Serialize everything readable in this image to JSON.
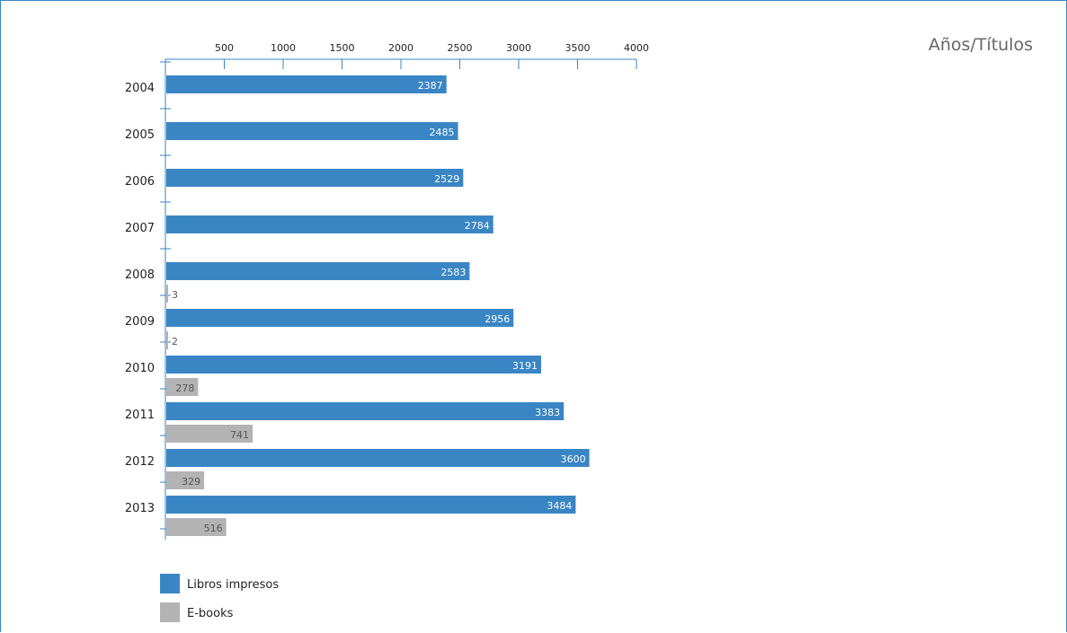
{
  "chart_data": {
    "type": "bar",
    "orientation": "horizontal",
    "title": "Años/Títulos",
    "categories": [
      "2004",
      "2005",
      "2006",
      "2007",
      "2008",
      "2009",
      "2010",
      "2011",
      "2012",
      "2013"
    ],
    "series": [
      {
        "name": "Libros impresos",
        "color": "#3a86c4",
        "values": [
          2387,
          2485,
          2529,
          2784,
          2583,
          2956,
          3191,
          3383,
          3600,
          3484
        ]
      },
      {
        "name": "E-books",
        "color": "#b3b3b3",
        "values": [
          null,
          null,
          null,
          null,
          3,
          2,
          278,
          741,
          329,
          516
        ]
      }
    ],
    "xticks": [
      500,
      1000,
      1500,
      2000,
      2500,
      3000,
      3500,
      4000
    ],
    "xlim": [
      0,
      4000
    ],
    "axis_position": "top",
    "legend_position": "bottom-left",
    "grid": false
  }
}
